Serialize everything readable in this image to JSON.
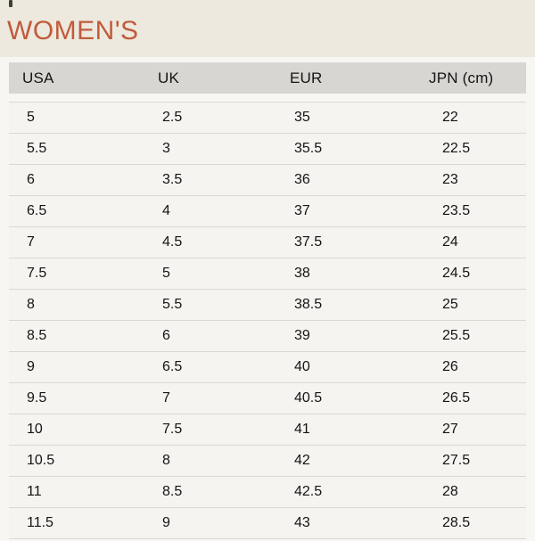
{
  "page": {
    "title": "WOMEN'S"
  },
  "colors": {
    "accent": "#C05B3C",
    "band-bg": "#EDE9DE",
    "page-bg": "#F7F6F3",
    "header-bg": "#D8D6D2",
    "row-bg": "#F5F4F1",
    "line": "#D9D8D5",
    "text": "#141414"
  },
  "table": {
    "headers": [
      "USA",
      "UK",
      "EUR",
      "JPN (cm)"
    ],
    "rows": [
      [
        "5",
        "2.5",
        "35",
        "22"
      ],
      [
        "5.5",
        "3",
        "35.5",
        "22.5"
      ],
      [
        "6",
        "3.5",
        "36",
        "23"
      ],
      [
        "6.5",
        "4",
        "37",
        "23.5"
      ],
      [
        "7",
        "4.5",
        "37.5",
        "24"
      ],
      [
        "7.5",
        "5",
        "38",
        "24.5"
      ],
      [
        "8",
        "5.5",
        "38.5",
        "25"
      ],
      [
        "8.5",
        "6",
        "39",
        "25.5"
      ],
      [
        "9",
        "6.5",
        "40",
        "26"
      ],
      [
        "9.5",
        "7",
        "40.5",
        "26.5"
      ],
      [
        "10",
        "7.5",
        "41",
        "27"
      ],
      [
        "10.5",
        "8",
        "42",
        "27.5"
      ],
      [
        "11",
        "8.5",
        "42.5",
        "28"
      ],
      [
        "11.5",
        "9",
        "43",
        "28.5"
      ]
    ]
  }
}
